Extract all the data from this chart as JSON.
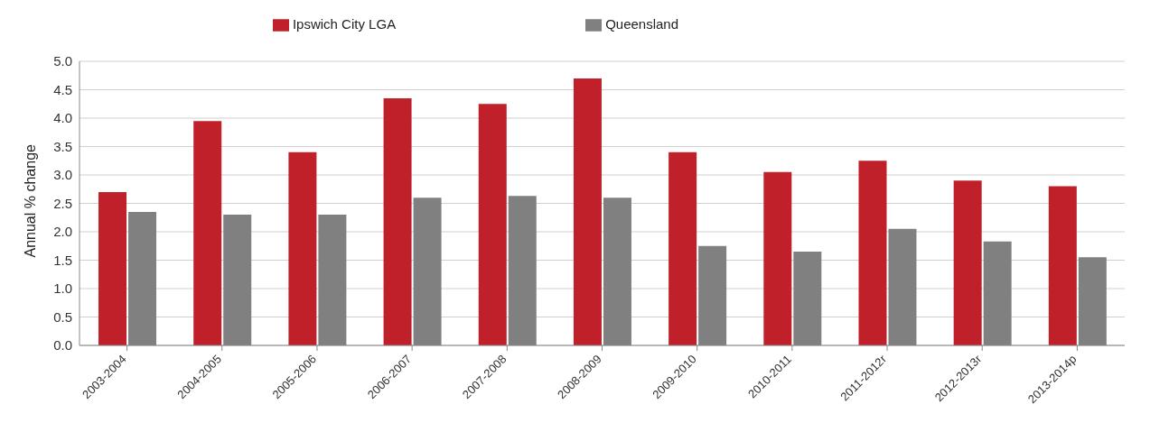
{
  "chart_data": {
    "type": "bar",
    "ylabel": "Annual % change",
    "categories": [
      "2003-2004",
      "2004-2005",
      "2005-2006",
      "2006-2007",
      "2007-2008",
      "2008-2009",
      "2009-2010",
      "2010-2011",
      "2011-2012r",
      "2012-2013r",
      "2013-2014p"
    ],
    "series": [
      {
        "name": "Ipswich City LGA",
        "color": "#c0202a",
        "values": [
          2.7,
          3.95,
          3.4,
          4.35,
          4.25,
          4.7,
          3.4,
          3.05,
          3.25,
          2.9,
          2.8
        ]
      },
      {
        "name": "Queensland",
        "color": "#808080",
        "values": [
          2.35,
          2.3,
          2.3,
          2.6,
          2.63,
          2.6,
          1.75,
          1.65,
          2.05,
          1.83,
          1.55
        ]
      }
    ],
    "ylim": [
      0,
      5
    ],
    "yticks": [
      {
        "value": 0,
        "label": "0.0"
      },
      0.5,
      {
        "value": 1,
        "label": "1.0"
      },
      1.5,
      {
        "value": 2,
        "label": "2.0"
      },
      2.5,
      {
        "value": 3,
        "label": "3.0"
      },
      3.5,
      {
        "value": 4,
        "label": "4.0"
      },
      4.5,
      {
        "value": 5,
        "label": "5.0"
      }
    ],
    "grid": "y",
    "legend": "top"
  }
}
